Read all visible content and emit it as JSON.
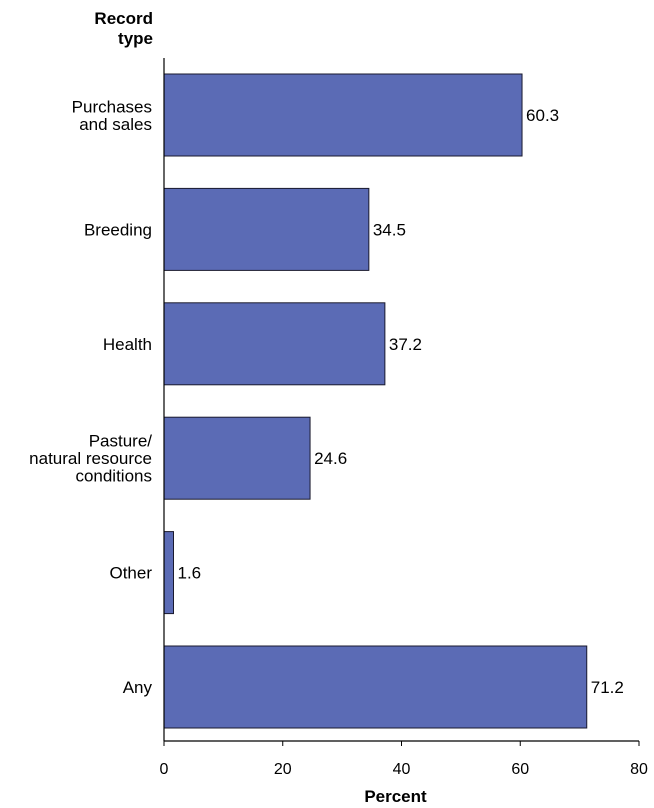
{
  "chart_data": {
    "type": "bar",
    "orientation": "horizontal",
    "title": "",
    "ylabel": [
      "Record",
      "type"
    ],
    "xlabel": "Percent",
    "categories": [
      [
        "Purchases",
        "and sales"
      ],
      [
        "Breeding"
      ],
      [
        "Health"
      ],
      [
        "Pasture/",
        "natural resource",
        "conditions"
      ],
      [
        "Other"
      ],
      [
        "Any"
      ]
    ],
    "values": [
      60.3,
      34.5,
      37.2,
      24.6,
      1.6,
      71.2
    ],
    "value_labels": [
      "60.3",
      "34.5",
      "37.2",
      "24.6",
      "1.6",
      "71.2"
    ],
    "xlim": [
      0,
      80
    ],
    "xticks": [
      0,
      20,
      40,
      60,
      80
    ],
    "grid": false,
    "bar_color": "#5b6bb5",
    "bar_edge_color": "#1a1a2e"
  }
}
